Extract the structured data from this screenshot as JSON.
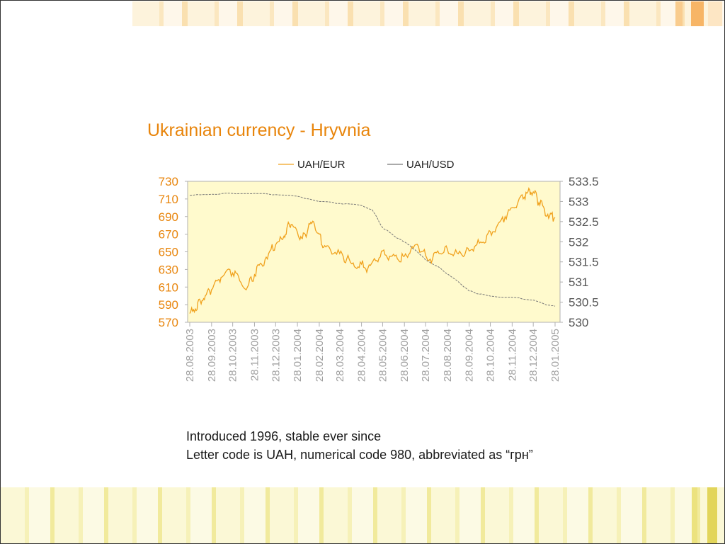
{
  "slide": {
    "title": "Ukrainian currency - Hryvnia",
    "notes": [
      "Introduced 1996, stable ever since",
      "Letter code is UAH, numerical code 980, abbreviated as “грн”"
    ]
  },
  "colors": {
    "eur": "#f0a21e",
    "usd": "#777777",
    "plot_bg": "#fffacd",
    "left_axis_text": "#e8850c",
    "right_axis_text": "#555555",
    "date_text": "#a0a0a0"
  },
  "chart_data": {
    "type": "line",
    "title": "",
    "xlabel": "",
    "ylabel": "",
    "legend": {
      "position": "top"
    },
    "grid": false,
    "x_ticks": [
      "28.08.2003",
      "28.09.2003",
      "28.10.2003",
      "28.11.2003",
      "28.12.2003",
      "28.01.2004",
      "28.02.2004",
      "28.03.2004",
      "28.04.2004",
      "28.05.2004",
      "28.06.2004",
      "28.07.2004",
      "28.08.2004",
      "28.09.2004",
      "28.10.2004",
      "28.11.2004",
      "28.12.2004",
      "28.01.2005"
    ],
    "y_left": {
      "min": 570,
      "max": 730,
      "ticks": [
        "730",
        "710",
        "690",
        "670",
        "650",
        "630",
        "610",
        "590",
        "570"
      ]
    },
    "y_right": {
      "min": 530,
      "max": 533.5,
      "ticks": [
        "533.5",
        "533",
        "532.5",
        "532",
        "531.5",
        "531",
        "530.5",
        "530"
      ]
    },
    "series": [
      {
        "name": "UAH/EUR",
        "axis": "left",
        "points": [
          [
            "28.08.2003",
            580
          ],
          [
            "05.09.2003",
            585
          ],
          [
            "12.09.2003",
            594
          ],
          [
            "19.09.2003",
            600
          ],
          [
            "28.09.2003",
            607
          ],
          [
            "07.10.2003",
            618
          ],
          [
            "16.10.2003",
            624
          ],
          [
            "28.10.2003",
            626
          ],
          [
            "07.11.2003",
            617
          ],
          [
            "18.11.2003",
            610
          ],
          [
            "28.11.2003",
            624
          ],
          [
            "08.12.2003",
            636
          ],
          [
            "18.12.2003",
            648
          ],
          [
            "28.12.2003",
            658
          ],
          [
            "07.01.2004",
            664
          ],
          [
            "13.01.2004",
            677
          ],
          [
            "19.01.2004",
            681
          ],
          [
            "28.01.2004",
            672
          ],
          [
            "04.02.2004",
            665
          ],
          [
            "12.02.2004",
            676
          ],
          [
            "20.02.2004",
            684
          ],
          [
            "28.02.2004",
            670
          ],
          [
            "05.03.2004",
            655
          ],
          [
            "15.03.2004",
            652
          ],
          [
            "28.03.2004",
            648
          ],
          [
            "07.04.2004",
            642
          ],
          [
            "18.04.2004",
            633
          ],
          [
            "28.04.2004",
            636
          ],
          [
            "07.05.2004",
            631
          ],
          [
            "18.05.2004",
            640
          ],
          [
            "28.05.2004",
            651
          ],
          [
            "07.06.2004",
            645
          ],
          [
            "18.06.2004",
            642
          ],
          [
            "28.06.2004",
            645
          ],
          [
            "07.07.2004",
            652
          ],
          [
            "18.07.2004",
            656
          ],
          [
            "28.07.2004",
            646
          ],
          [
            "07.08.2004",
            642
          ],
          [
            "18.08.2004",
            648
          ],
          [
            "28.08.2004",
            653
          ],
          [
            "07.09.2004",
            648
          ],
          [
            "18.09.2004",
            646
          ],
          [
            "28.09.2004",
            651
          ],
          [
            "07.10.2004",
            657
          ],
          [
            "18.10.2004",
            661
          ],
          [
            "28.10.2004",
            673
          ],
          [
            "07.11.2004",
            680
          ],
          [
            "18.11.2004",
            690
          ],
          [
            "28.11.2004",
            700
          ],
          [
            "07.12.2004",
            708
          ],
          [
            "15.12.2004",
            712
          ],
          [
            "23.12.2004",
            720
          ],
          [
            "28.12.2004",
            718
          ],
          [
            "05.01.2005",
            706
          ],
          [
            "13.01.2005",
            698
          ],
          [
            "20.01.2005",
            690
          ],
          [
            "28.01.2005",
            689
          ]
        ]
      },
      {
        "name": "UAH/USD",
        "axis": "right",
        "points": [
          [
            "28.08.2003",
            533.15
          ],
          [
            "28.09.2003",
            533.18
          ],
          [
            "28.10.2003",
            533.2
          ],
          [
            "28.11.2003",
            533.2
          ],
          [
            "28.12.2003",
            533.17
          ],
          [
            "28.01.2004",
            533.13
          ],
          [
            "28.02.2004",
            533.0
          ],
          [
            "28.03.2004",
            532.95
          ],
          [
            "28.04.2004",
            532.9
          ],
          [
            "13.05.2004",
            532.8
          ],
          [
            "28.05.2004",
            532.35
          ],
          [
            "13.06.2004",
            532.15
          ],
          [
            "28.06.2004",
            532.0
          ],
          [
            "13.07.2004",
            531.8
          ],
          [
            "28.07.2004",
            531.55
          ],
          [
            "13.08.2004",
            531.4
          ],
          [
            "28.08.2004",
            531.2
          ],
          [
            "13.09.2004",
            531.0
          ],
          [
            "28.09.2004",
            530.78
          ],
          [
            "13.10.2004",
            530.7
          ],
          [
            "28.10.2004",
            530.65
          ],
          [
            "28.11.2004",
            530.62
          ],
          [
            "28.12.2004",
            530.55
          ],
          [
            "13.01.2005",
            530.45
          ],
          [
            "28.01.2005",
            530.4
          ]
        ]
      }
    ]
  }
}
